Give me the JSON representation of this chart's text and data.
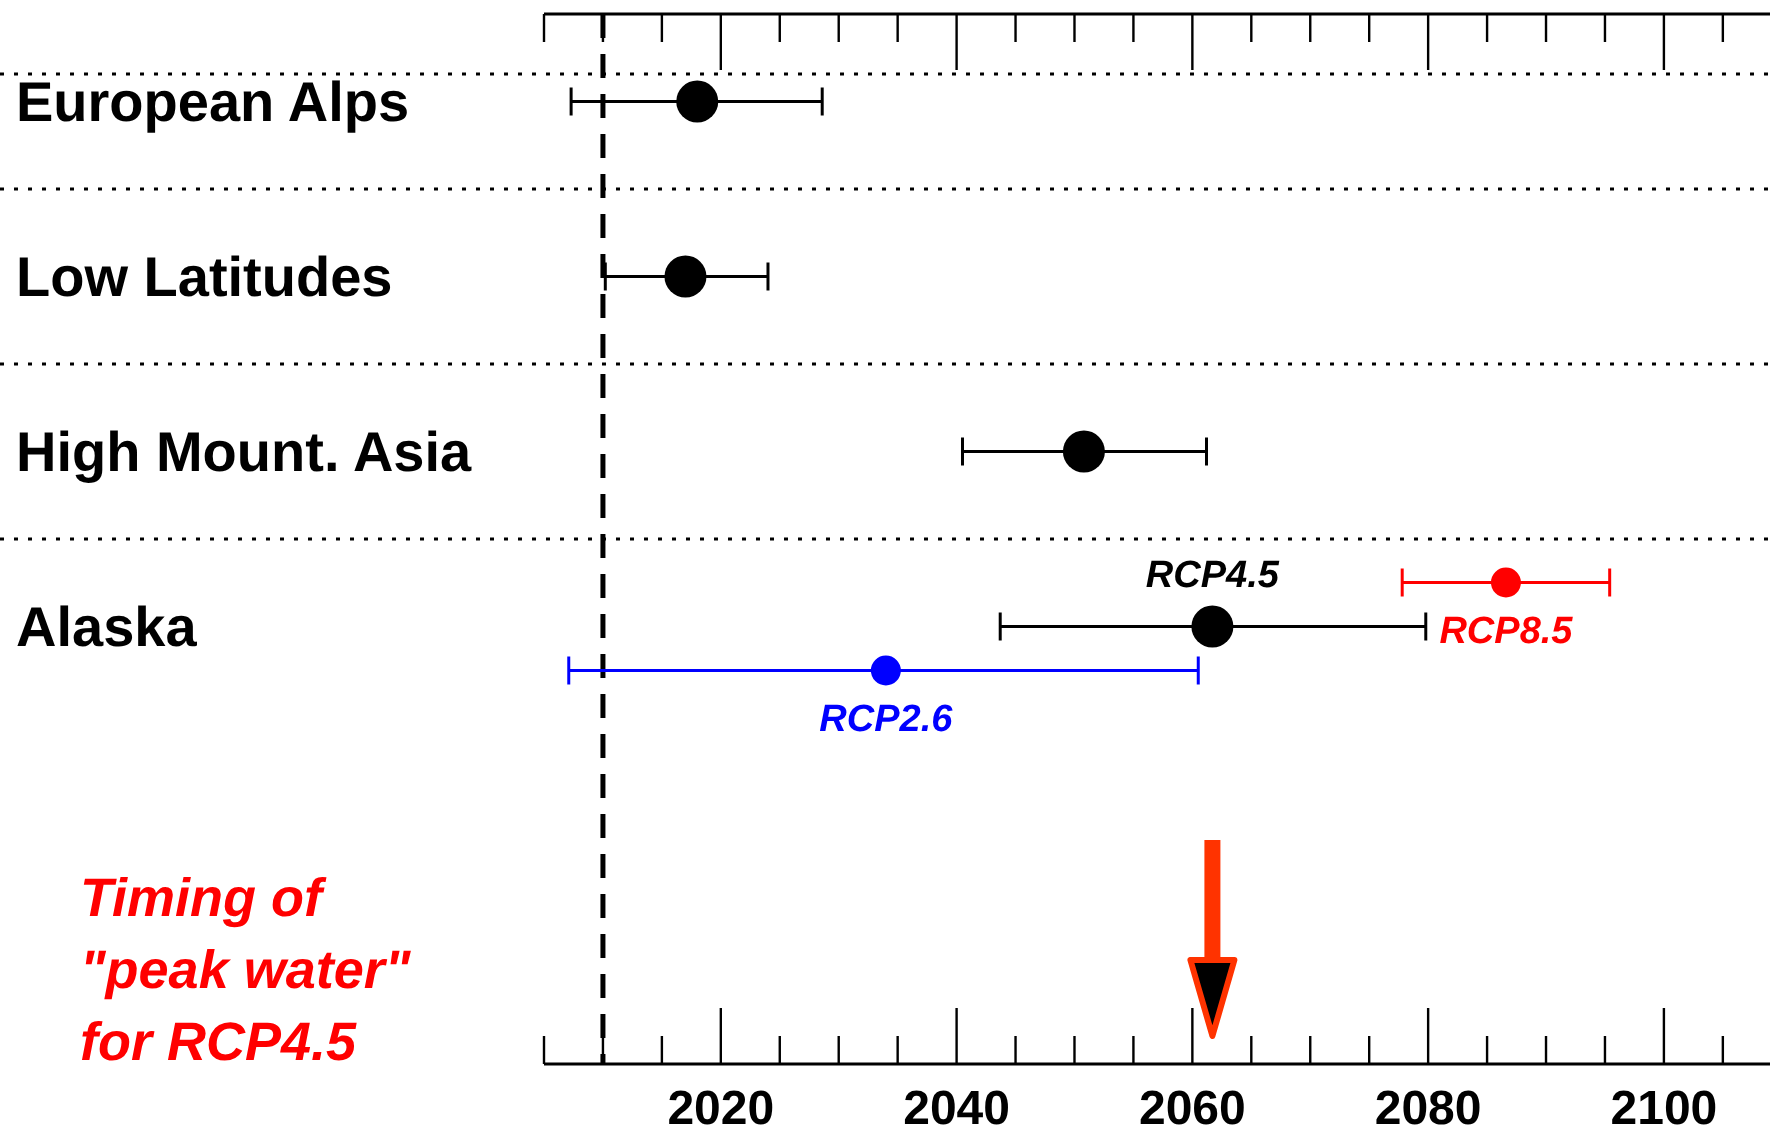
{
  "chart_data": {
    "type": "scatter",
    "orientation": "horizontal",
    "categories": [
      "European Alps",
      "Low Latitudes",
      "High Mount. Asia",
      "Alaska",
      null,
      null
    ],
    "xlim": [
      2005,
      2109
    ],
    "xticks": [
      {
        "value": 2005,
        "label": null
      },
      {
        "value": 2010,
        "label": null
      },
      {
        "value": 2015,
        "label": null
      },
      2020,
      {
        "value": 2025,
        "label": null
      },
      {
        "value": 2030,
        "label": null
      },
      {
        "value": 2035,
        "label": null
      },
      2040,
      {
        "value": 2045,
        "label": null
      },
      {
        "value": 2050,
        "label": null
      },
      {
        "value": 2055,
        "label": null
      },
      2060,
      {
        "value": 2065,
        "label": null
      },
      {
        "value": 2070,
        "label": null
      },
      {
        "value": 2075,
        "label": null
      },
      2080,
      {
        "value": 2085,
        "label": null
      },
      {
        "value": 2090,
        "label": null
      },
      {
        "value": 2095,
        "label": null
      },
      2100,
      {
        "value": 2105,
        "label": null
      }
    ],
    "series": [
      {
        "name": "RCP8.5",
        "color": "#ff0000",
        "values": [
          null,
          null,
          null,
          2086.6,
          null,
          null
        ],
        "errors": [
          null,
          null,
          null,
          [
            2077.8,
            2095.4
          ],
          null,
          null
        ]
      },
      {
        "name": "RCP4.5",
        "color": "#000000",
        "values": [
          2018,
          2017,
          2050.8,
          2061.7,
          null,
          null
        ],
        "errors": [
          [
            2007.3,
            2028.6
          ],
          [
            2010.2,
            2024
          ],
          [
            2040.5,
            2061.2
          ],
          [
            2043.7,
            2079.8
          ],
          null,
          null
        ]
      },
      {
        "name": "RCP2.6",
        "color": "#0000ff",
        "values": [
          null,
          null,
          null,
          2034,
          null,
          null
        ],
        "errors": [
          null,
          null,
          null,
          [
            2007.1,
            2060.5
          ],
          null,
          null
        ]
      }
    ],
    "ref_lines": [
      {
        "axis": "x",
        "value": 2010,
        "line_style": "dashed",
        "color": "#000000"
      }
    ],
    "annotations": [
      "Timing of \"peak water\" for RCP4.5"
    ],
    "grid": "y",
    "marker": "circle"
  }
}
